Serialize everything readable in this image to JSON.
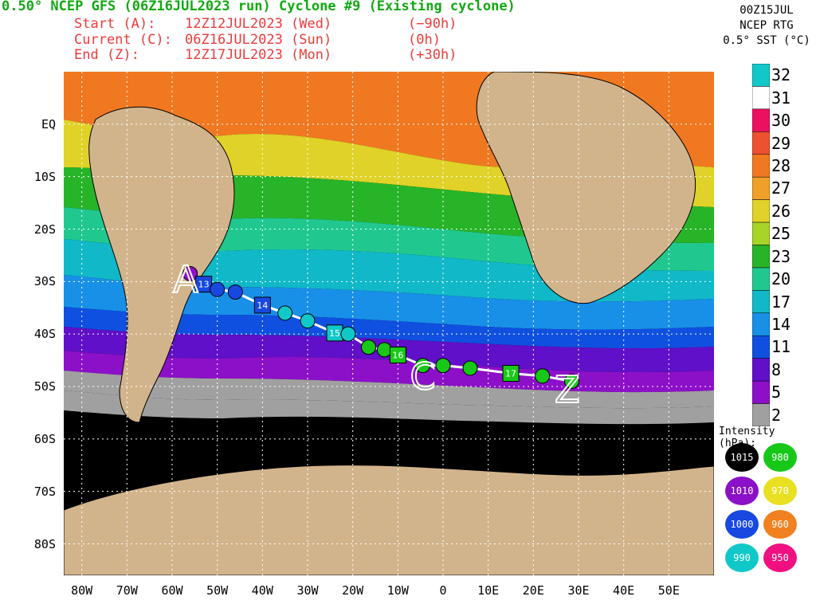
{
  "header": {
    "title": "0.50° NCEP GFS (06Z16JUL2023 run) Cyclone #9 (Existing cyclone)",
    "rows": [
      {
        "label": "Start (A):",
        "time": "12Z12JUL2023 (Wed)",
        "offset": "(−90h)"
      },
      {
        "label": "Current (C):",
        "time": "06Z16JUL2023 (Sun)",
        "offset": "(0h)"
      },
      {
        "label": "End (Z):",
        "time": "12Z17JUL2023 (Mon)",
        "offset": "(+30h)"
      }
    ]
  },
  "sst": {
    "line1": "00Z15JUL",
    "line2": "NCEP RTG",
    "line3": "0.5° SST (°C)",
    "levels": [
      "32",
      "31",
      "30",
      "29",
      "28",
      "27",
      "26",
      "25",
      "23",
      "20",
      "17",
      "14",
      "11",
      "8",
      "5",
      "2"
    ],
    "colors": [
      "#10c8c8",
      "#ffffff",
      "#ee1060",
      "#ee5030",
      "#f07820",
      "#f0a028",
      "#e0d228",
      "#a8d428",
      "#28b428",
      "#20c890",
      "#10b8c8",
      "#1890e8",
      "#1050e0",
      "#6010c8",
      "#8c10c8",
      "#a0a0a0"
    ]
  },
  "axes": {
    "lat_labels": [
      "EQ",
      "10S",
      "20S",
      "30S",
      "40S",
      "50S",
      "60S",
      "70S",
      "80S"
    ],
    "lon_labels": [
      "80W",
      "70W",
      "60W",
      "50W",
      "40W",
      "30W",
      "20W",
      "10W",
      "0",
      "10E",
      "20E",
      "30E",
      "40E",
      "50E"
    ]
  },
  "intensity": {
    "title": "Intensity (hPa):",
    "items": [
      {
        "value": "1015",
        "color": "#000000"
      },
      {
        "value": "980",
        "color": "#18c818"
      },
      {
        "value": "1010",
        "color": "#8c10c8"
      },
      {
        "value": "970",
        "color": "#e8e020"
      },
      {
        "value": "1000",
        "color": "#1848e0"
      },
      {
        "value": "960",
        "color": "#f08020"
      },
      {
        "value": "990",
        "color": "#10c8c8"
      },
      {
        "value": "950",
        "color": "#f01080"
      }
    ]
  },
  "track": {
    "start_marker": "A",
    "current_marker": "C",
    "end_marker": "Z",
    "day_labels": [
      "13",
      "14",
      "15",
      "16",
      "17"
    ],
    "points": [
      {
        "lon": -56,
        "lat": -28.5,
        "kind": "circle",
        "hpa": "1010"
      },
      {
        "lon": -53,
        "lat": -30.5,
        "kind": "square",
        "hpa": "1000",
        "label": "13"
      },
      {
        "lon": -50,
        "lat": -31.5,
        "kind": "circle",
        "hpa": "1000"
      },
      {
        "lon": -46,
        "lat": -32,
        "kind": "circle",
        "hpa": "1000"
      },
      {
        "lon": -40,
        "lat": -34.5,
        "kind": "square",
        "hpa": "1000",
        "label": "14"
      },
      {
        "lon": -35,
        "lat": -36,
        "kind": "circle",
        "hpa": "990"
      },
      {
        "lon": -30,
        "lat": -37.5,
        "kind": "circle",
        "hpa": "990"
      },
      {
        "lon": -24,
        "lat": -39.8,
        "kind": "square",
        "hpa": "990",
        "label": "15"
      },
      {
        "lon": -21,
        "lat": -40,
        "kind": "circle",
        "hpa": "990"
      },
      {
        "lon": -16.5,
        "lat": -42.5,
        "kind": "circle",
        "hpa": "980"
      },
      {
        "lon": -13,
        "lat": -43,
        "kind": "circle",
        "hpa": "980"
      },
      {
        "lon": -10,
        "lat": -44,
        "kind": "square",
        "hpa": "980",
        "label": "16"
      },
      {
        "lon": -4.5,
        "lat": -46,
        "kind": "circle",
        "hpa": "980"
      },
      {
        "lon": 0,
        "lat": -46,
        "kind": "circle",
        "hpa": "980"
      },
      {
        "lon": 6,
        "lat": -46.5,
        "kind": "circle",
        "hpa": "980"
      },
      {
        "lon": 15,
        "lat": -47.5,
        "kind": "square",
        "hpa": "980",
        "label": "17"
      },
      {
        "lon": 22,
        "lat": -48,
        "kind": "circle",
        "hpa": "980"
      },
      {
        "lon": 28.5,
        "lat": -49,
        "kind": "circle",
        "hpa": "980"
      }
    ]
  }
}
